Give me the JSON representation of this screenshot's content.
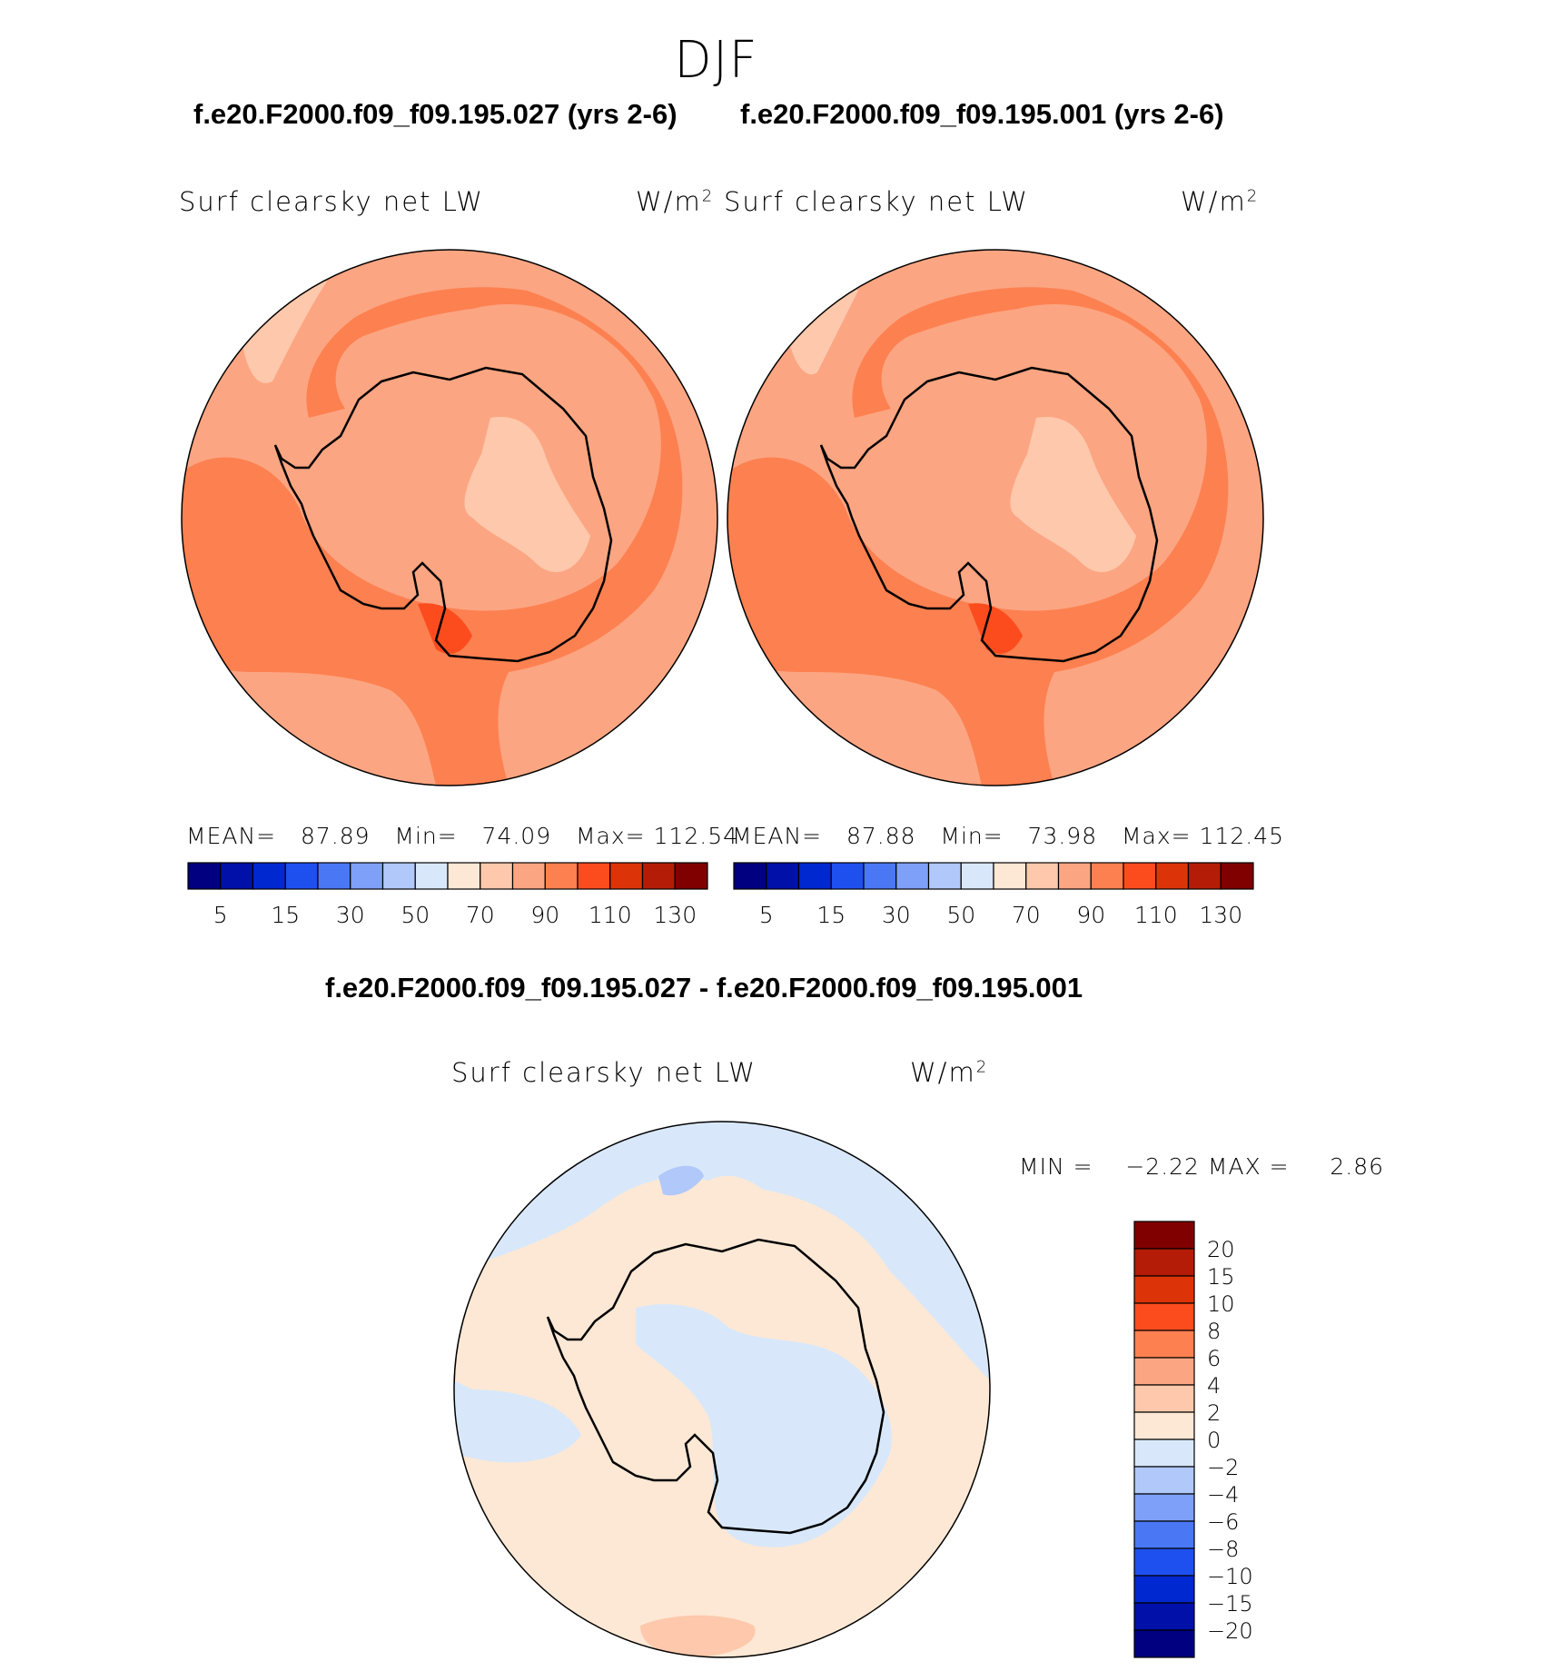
{
  "season": "DJF",
  "panels": [
    {
      "case_title": "f.e20.F2000.f09_f09.195.027 (yrs 2-6)",
      "variable": "Surf clearsky net LW",
      "units_base": "W/m",
      "units_exp": "2",
      "stats": {
        "mean_label": "MEAN=",
        "mean": "87.89",
        "min_label": "Min=",
        "min": "74.09",
        "max_label": "Max=",
        "max": "112.54"
      }
    },
    {
      "case_title": "f.e20.F2000.f09_f09.195.001 (yrs 2-6)",
      "variable": "Surf clearsky net LW",
      "units_base": "W/m",
      "units_exp": "2",
      "stats": {
        "mean_label": "MEAN=",
        "mean": "87.88",
        "min_label": "Min=",
        "min": "73.98",
        "max_label": "Max=",
        "max": "112.45"
      }
    }
  ],
  "diff_panel": {
    "case_title": "f.e20.F2000.f09_f09.195.027 - f.e20.F2000.f09_f09.195.001",
    "variable": "Surf clearsky net LW",
    "units_base": "W/m",
    "units_exp": "2",
    "stats": {
      "min_label": "MIN =",
      "min": "−2.22",
      "max_label": "MAX =",
      "max": "2.86"
    }
  },
  "colorbar_main": {
    "colors": [
      "#000080",
      "#0010a8",
      "#0028d0",
      "#1e50f0",
      "#4a78f5",
      "#7ea0f8",
      "#b0c8fa",
      "#d8e8fa",
      "#fde8d5",
      "#fdc8ab",
      "#fca582",
      "#fd8050",
      "#fc4c1e",
      "#dc3408",
      "#b41c08",
      "#800000"
    ],
    "tick_labels": [
      "5",
      "15",
      "30",
      "50",
      "70",
      "90",
      "110",
      "130"
    ]
  },
  "colorbar_diff": {
    "colors": [
      "#800000",
      "#b41c08",
      "#dc3408",
      "#fc4c1e",
      "#fd8050",
      "#fca582",
      "#fdc8ab",
      "#fde8d5",
      "#d8e8fa",
      "#b0c8fa",
      "#7ea0f8",
      "#4a78f5",
      "#1e50f0",
      "#0028d0",
      "#0010a8",
      "#000080"
    ],
    "tick_labels": [
      "20",
      "15",
      "10",
      "8",
      "6",
      "4",
      "2",
      "0",
      "−2",
      "−4",
      "−6",
      "−8",
      "−10",
      "−15",
      "−20"
    ]
  },
  "map_colors": {
    "level_70_90": "#fca582",
    "level_90_110": "#fd8050",
    "level_110_130": "#fc4c1e",
    "level_50_70": "#fdc8ab",
    "diff_0_2": "#fde8d5",
    "diff_m2_0": "#d8e8fa",
    "diff_m4_m2": "#b0c8fa",
    "diff_2_4": "#fdc8ab",
    "coast": "#000000"
  }
}
